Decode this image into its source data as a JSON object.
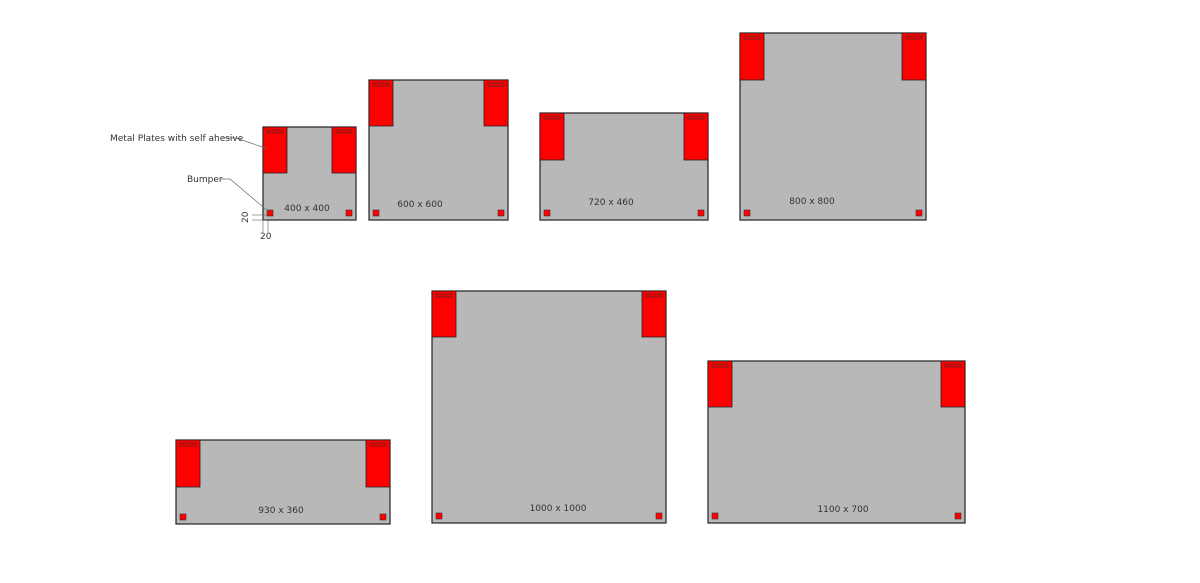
{
  "annotations": {
    "metal_plates": "Metal Plates with self ahesive",
    "bumper": "Bumper",
    "dim_vertical": "20",
    "dim_horizontal": "20"
  },
  "panels": [
    {
      "label": "400 x 400"
    },
    {
      "label": "600 x 600"
    },
    {
      "label": "720 x 460"
    },
    {
      "label": "800 x 800"
    },
    {
      "label": "930 x 360"
    },
    {
      "label": "1000 x 1000"
    },
    {
      "label": "1100 x 700"
    }
  ],
  "colors": {
    "panel": "#b8b8b8",
    "plate": "#ff0000",
    "outline": "#222222"
  }
}
